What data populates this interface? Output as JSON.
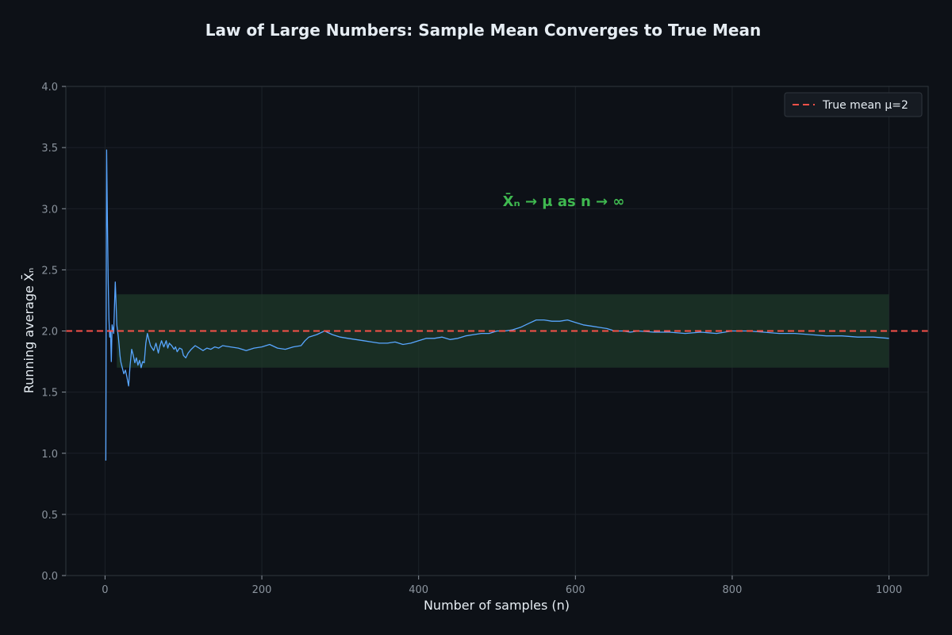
{
  "chart_data": {
    "type": "line",
    "title": "Law of Large Numbers: Sample Mean Converges to True Mean",
    "xlabel": "Number of samples (n)",
    "ylabel": "Running average X̄ₙ",
    "xlim": [
      -50,
      1050
    ],
    "ylim": [
      0,
      4
    ],
    "xticks": [
      0,
      200,
      400,
      600,
      800,
      1000
    ],
    "yticks": [
      0.0,
      0.5,
      1.0,
      1.5,
      2.0,
      2.5,
      3.0,
      3.5,
      4.0
    ],
    "grid": true,
    "legend": "top-right",
    "annotation": "X̄ₙ → μ as n → ∞",
    "annotation_position": {
      "x": 585,
      "y": 3.02
    },
    "reference_line": {
      "name": "True mean μ=2",
      "y": 2,
      "style": "dashed"
    },
    "band": {
      "x_start": 15,
      "x_end": 1000,
      "y_low": 1.7,
      "y_high": 2.3
    },
    "series": [
      {
        "name": "",
        "x": [
          1,
          2,
          3,
          4,
          5,
          6,
          7,
          8,
          9,
          10,
          11,
          12,
          13,
          14,
          15,
          16,
          17,
          18,
          19,
          20,
          22,
          24,
          26,
          28,
          30,
          32,
          34,
          36,
          38,
          40,
          42,
          44,
          46,
          48,
          50,
          52,
          54,
          56,
          58,
          60,
          62,
          65,
          68,
          70,
          72,
          75,
          78,
          80,
          82,
          85,
          88,
          90,
          92,
          95,
          98,
          100,
          103,
          106,
          110,
          115,
          120,
          125,
          130,
          135,
          140,
          145,
          150,
          160,
          170,
          180,
          190,
          200,
          210,
          220,
          230,
          240,
          250,
          255,
          260,
          270,
          280,
          290,
          300,
          310,
          320,
          330,
          340,
          350,
          360,
          370,
          380,
          390,
          400,
          410,
          420,
          430,
          440,
          450,
          460,
          470,
          480,
          490,
          500,
          510,
          520,
          530,
          540,
          550,
          560,
          570,
          580,
          590,
          600,
          610,
          620,
          630,
          640,
          650,
          660,
          670,
          680,
          700,
          720,
          740,
          760,
          780,
          800,
          820,
          840,
          860,
          880,
          900,
          920,
          940,
          960,
          980,
          1000
        ],
        "y": [
          0.94,
          3.48,
          2.9,
          2.4,
          2.1,
          1.95,
          2.0,
          1.75,
          2.05,
          2.02,
          1.98,
          2.2,
          2.4,
          2.25,
          2.05,
          2.0,
          1.95,
          1.88,
          1.8,
          1.75,
          1.7,
          1.65,
          1.68,
          1.62,
          1.55,
          1.72,
          1.85,
          1.8,
          1.74,
          1.78,
          1.72,
          1.76,
          1.7,
          1.75,
          1.74,
          1.9,
          1.98,
          1.93,
          1.88,
          1.86,
          1.84,
          1.9,
          1.82,
          1.88,
          1.92,
          1.87,
          1.92,
          1.86,
          1.9,
          1.88,
          1.85,
          1.87,
          1.83,
          1.86,
          1.85,
          1.8,
          1.78,
          1.82,
          1.85,
          1.88,
          1.86,
          1.84,
          1.86,
          1.85,
          1.87,
          1.86,
          1.88,
          1.87,
          1.86,
          1.84,
          1.86,
          1.87,
          1.89,
          1.86,
          1.85,
          1.87,
          1.88,
          1.92,
          1.95,
          1.97,
          2.0,
          1.97,
          1.95,
          1.94,
          1.93,
          1.92,
          1.91,
          1.9,
          1.9,
          1.91,
          1.89,
          1.9,
          1.92,
          1.94,
          1.94,
          1.95,
          1.93,
          1.94,
          1.96,
          1.97,
          1.98,
          1.98,
          2.0,
          2.0,
          2.01,
          2.03,
          2.06,
          2.09,
          2.09,
          2.08,
          2.08,
          2.09,
          2.07,
          2.05,
          2.04,
          2.03,
          2.02,
          2.0,
          2.0,
          1.99,
          2.0,
          1.99,
          1.99,
          1.98,
          1.99,
          1.98,
          2.0,
          2.0,
          1.99,
          1.98,
          1.98,
          1.97,
          1.96,
          1.96,
          1.95,
          1.95,
          1.94
        ]
      }
    ],
    "colors": {
      "background": "#0d1117",
      "plot_background": "#0d1117",
      "line": "#58a6ff",
      "reference_line": "#f85149",
      "band": "#1f3a2b",
      "annotation": "#3fb950",
      "text": "#e6edf3",
      "tick_text": "#8b949e",
      "grid": "#1c2128",
      "spine": "#30363d"
    }
  }
}
